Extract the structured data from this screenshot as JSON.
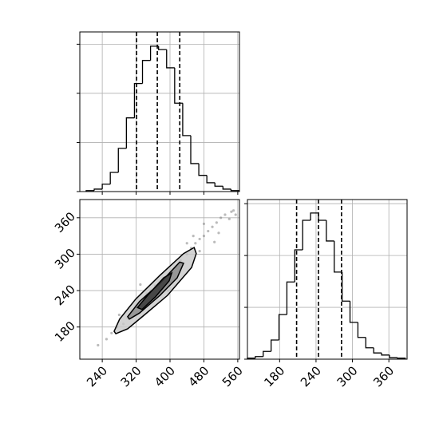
{
  "chart_data": [
    {
      "type": "histogram",
      "xlim": [
        187,
        564
      ],
      "ylim": [
        0,
        325
      ],
      "xticks": [
        240,
        320,
        400,
        480,
        560
      ],
      "yticks": [
        0,
        100,
        200,
        300
      ],
      "xtick_labels": false,
      "ytick_labels": false,
      "grid": true,
      "color": "#000000",
      "bins": [
        202,
        221,
        240,
        259,
        278,
        297,
        316,
        335,
        354,
        373,
        392,
        411,
        430,
        449,
        468,
        487,
        506,
        525,
        544,
        563
      ],
      "values": [
        2,
        5,
        15,
        39,
        88,
        150,
        220,
        267,
        296,
        289,
        252,
        180,
        114,
        57,
        33,
        18,
        11,
        5,
        2
      ],
      "quantiles": [
        321,
        370,
        423
      ]
    },
    {
      "type": "contour",
      "xlim": [
        187,
        564
      ],
      "ylim": [
        127,
        390
      ],
      "xticks": [
        240,
        320,
        400,
        480,
        560
      ],
      "yticks": [
        180,
        240,
        300,
        360
      ],
      "xtick_labels": true,
      "ytick_labels": true,
      "grid": true,
      "color": "#000000",
      "points": {
        "x": [
          230,
          250,
          262,
          275,
          290,
          300,
          310,
          320,
          335,
          345,
          355,
          365,
          380,
          390,
          400,
          415,
          425,
          440,
          450,
          460,
          470,
          480,
          490,
          500,
          510,
          520,
          530,
          545,
          480,
          470,
          455,
          395,
          330,
          280,
          505,
          515,
          440,
          550,
          540,
          555
        ],
        "y": [
          150,
          160,
          170,
          180,
          185,
          195,
          205,
          215,
          220,
          235,
          240,
          248,
          255,
          262,
          270,
          280,
          290,
          300,
          310,
          318,
          325,
          330,
          338,
          345,
          352,
          360,
          365,
          370,
          350,
          305,
          330,
          240,
          250,
          200,
          320,
          335,
          318,
          372,
          358,
          365
        ]
      },
      "contours": [
        {
          "x": [
            268,
            281,
            319,
            376,
            432,
            457,
            462,
            451,
            394,
            338,
            300,
            272
          ],
          "y": [
            173,
            193,
            226,
            265,
            301,
            311,
            301,
            278,
            232,
            199,
            177,
            169
          ]
        },
        {
          "x": [
            300,
            328,
            376,
            423,
            432,
            417,
            376,
            328,
            304
          ],
          "y": [
            197,
            222,
            252,
            287,
            285,
            261,
            232,
            203,
            193
          ]
        },
        {
          "x": [
            323,
            347,
            385,
            404,
            398,
            366,
            334
          ],
          "y": [
            212,
            232,
            261,
            269,
            256,
            230,
            209
          ]
        }
      ]
    },
    {
      "type": "histogram",
      "xlim": [
        127,
        390
      ],
      "ylim": [
        0,
        308
      ],
      "xticks": [
        180,
        240,
        300,
        360
      ],
      "yticks": [
        0,
        100,
        200,
        300
      ],
      "xtick_labels": true,
      "ytick_labels": false,
      "grid": true,
      "color": "#000000",
      "bins": [
        127,
        140,
        153,
        166,
        179,
        192,
        205,
        218,
        231,
        244,
        257,
        270,
        283,
        296,
        309,
        322,
        335,
        348,
        361,
        374,
        387
      ],
      "values": [
        2,
        5,
        15,
        37,
        86,
        149,
        211,
        268,
        282,
        268,
        228,
        168,
        112,
        71,
        42,
        22,
        12,
        8,
        3,
        2
      ],
      "quantiles": [
        208,
        244,
        282
      ]
    }
  ]
}
